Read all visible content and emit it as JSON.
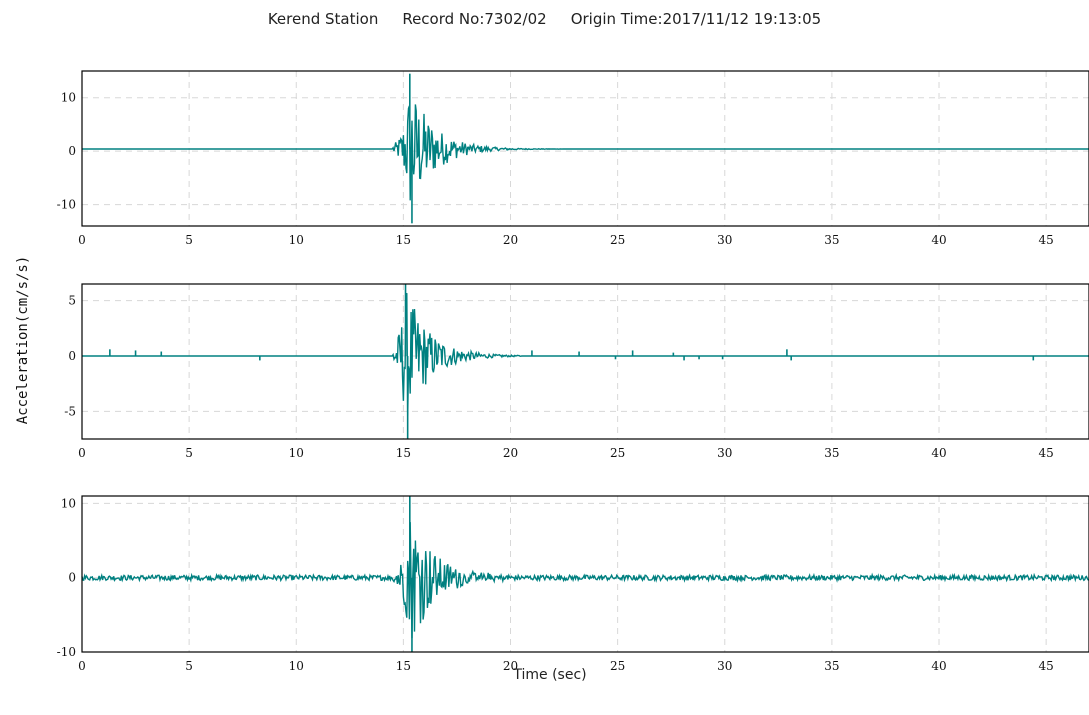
{
  "header": {
    "station": "Kerend Station",
    "record": "Record No:7302/02",
    "origin": "Origin Time:2017/11/12 19:13:05"
  },
  "chart_data": {
    "type": "line",
    "title": "Kerend Station Record No:7302/02 Origin Time:2017/11/12 19:13:05",
    "xlabel": "Time (sec)",
    "ylabel": "Acceleration(cm/s/s)",
    "grid": true,
    "line_color": "#008080",
    "panels": [
      {
        "ylim": [
          -14,
          15
        ],
        "yticks": [
          -10,
          0,
          10
        ],
        "xlim": [
          0,
          47
        ],
        "xticks": [
          0,
          5,
          10,
          15,
          20,
          25,
          30,
          35,
          40,
          45
        ],
        "baseline": 0.4,
        "peak_time": 15.3,
        "peak_pos": 14.5,
        "peak_neg": -13.5,
        "coda_end": 22.5,
        "spikes": []
      },
      {
        "ylim": [
          -7.5,
          6.5
        ],
        "yticks": [
          -5,
          0,
          5
        ],
        "xlim": [
          0,
          47
        ],
        "xticks": [
          0,
          5,
          10,
          15,
          20,
          25,
          30,
          35,
          40,
          45
        ],
        "baseline": 0.0,
        "peak_time": 15.1,
        "peak_pos": 6.5,
        "peak_neg": -7.5,
        "coda_end": 20.5,
        "spikes": [
          [
            1.3,
            0.6
          ],
          [
            2.5,
            0.5
          ],
          [
            3.7,
            0.4
          ],
          [
            8.3,
            -0.4
          ],
          [
            21,
            0.5
          ],
          [
            23.2,
            0.4
          ],
          [
            24.9,
            -0.3
          ],
          [
            25.7,
            0.5
          ],
          [
            27.6,
            0.3
          ],
          [
            28.1,
            -0.4
          ],
          [
            28.8,
            -0.3
          ],
          [
            29.9,
            -0.3
          ],
          [
            32.9,
            0.6
          ],
          [
            33.1,
            -0.4
          ],
          [
            44.4,
            -0.4
          ]
        ]
      },
      {
        "ylim": [
          -10,
          11
        ],
        "yticks": [
          -10,
          0,
          10
        ],
        "xlim": [
          0,
          47
        ],
        "xticks": [
          0,
          5,
          10,
          15,
          20,
          25,
          30,
          35,
          40,
          45
        ],
        "baseline": 0.0,
        "peak_time": 15.3,
        "peak_pos": 11.0,
        "peak_neg": -10.0,
        "coda_end": 20.0,
        "noise_level": 0.35,
        "spikes": []
      }
    ]
  }
}
